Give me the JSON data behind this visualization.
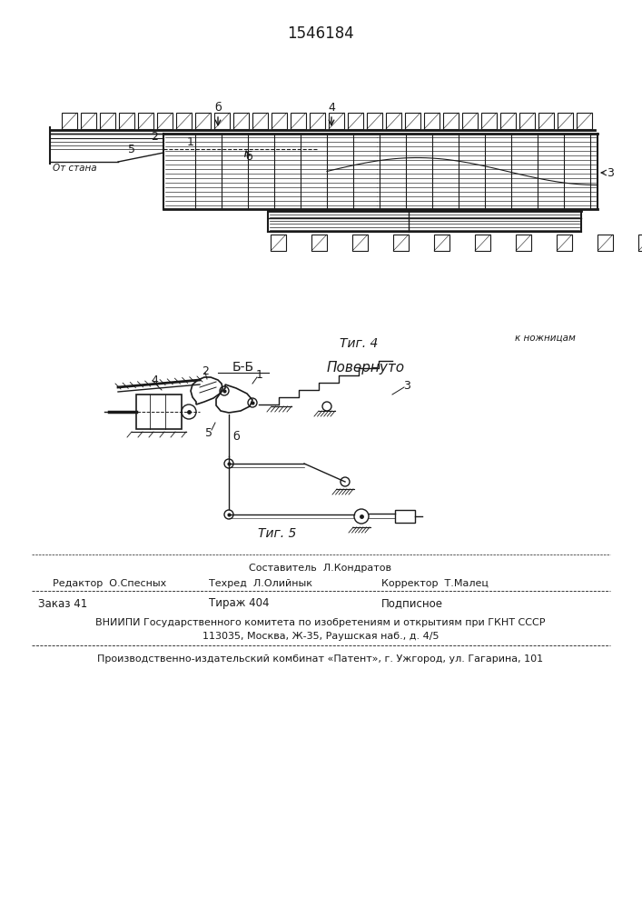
{
  "patent_number": "1546184",
  "bg_color": "#ffffff",
  "line_color": "#1a1a1a",
  "fig1_caption": "Τиг. 4",
  "fig2_caption": "Τиг. 5",
  "fig2_title_left": "Б-Б",
  "fig2_title_right": "Повернуто",
  "label_ot_stana": "От стана",
  "label_k_nozh": "к ножницам",
  "footer_sostavitel": "Составитель  Л.Кондратов",
  "footer_redaktor": "Редактор  О.Спесных",
  "footer_tehred": "Техред  Л.Олийнык",
  "footer_korrektor": "Корректор  Т.Малец",
  "footer_zakaz": "Заказ 41",
  "footer_tirazh": "Тираж 404",
  "footer_podpisnoe": "Подписное",
  "footer_vniiipi": "ВНИИПИ Государственного комитета по изобретениям и открытиям при ГКНТ СССР",
  "footer_address": "113035, Москва, Ж-35, Раушская наб., д. 4/5",
  "footer_production": "Производственно-издательский комбинат «Патент», г. Ужгород, ул. Гагарина, 101"
}
